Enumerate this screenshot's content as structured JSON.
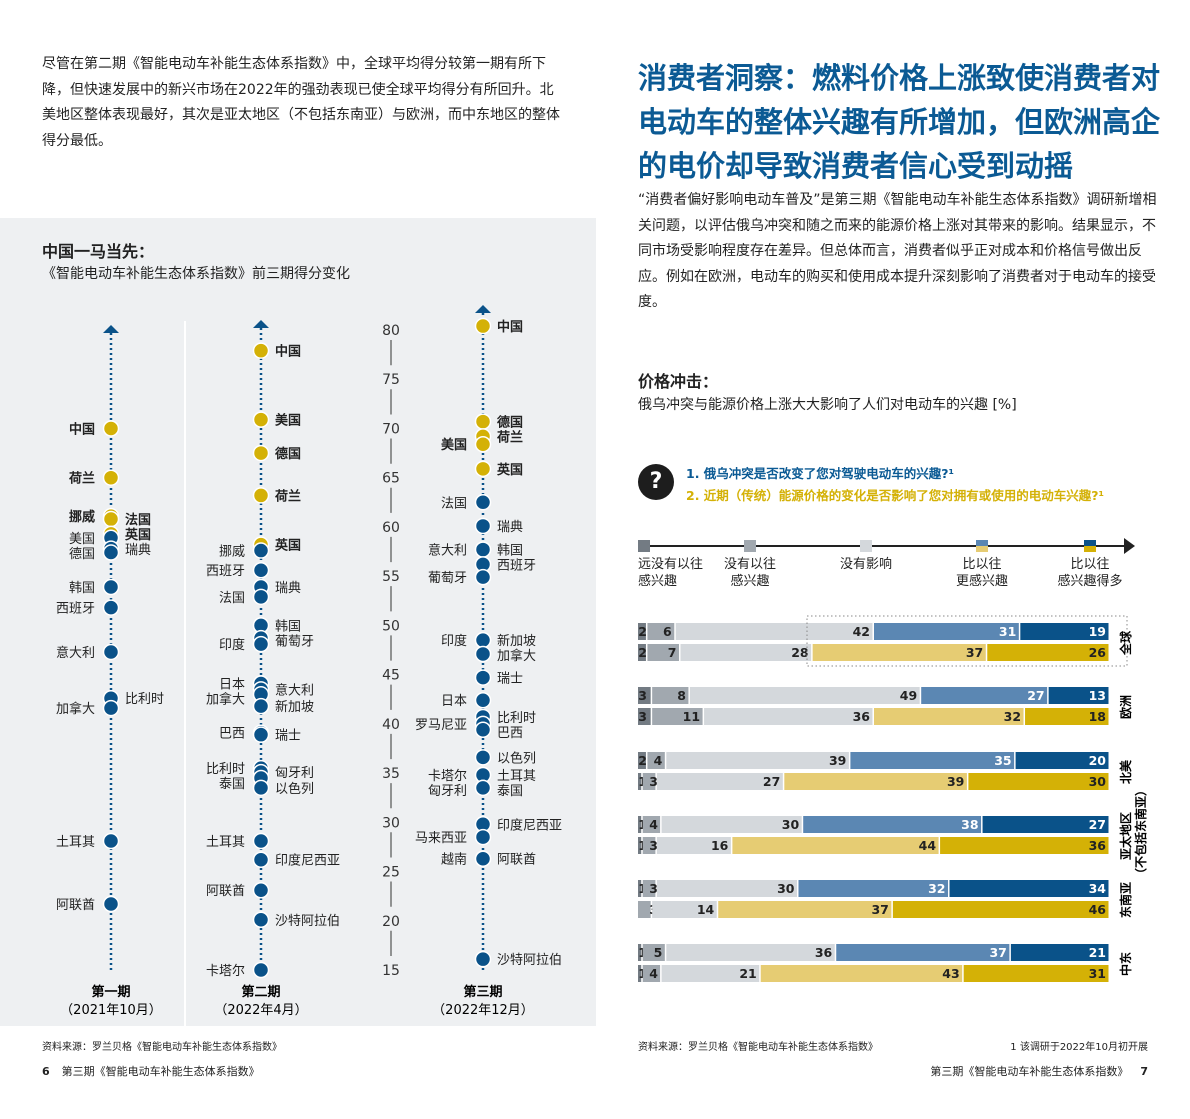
{
  "intro": "尽管在第二期《智能电动车补能生态体系指数》中，全球平均得分较第一期有所下降，但快速发展中的新兴市场在2022年的强劲表现已使全球平均得分有所回升。北美地区整体表现最好，其次是亚太地区（不包括东南亚）与欧洲，而中东地区的整体得分最低。",
  "left_chart": {
    "title": "中国一马当先：",
    "subtitle": "《智能电动车补能生态体系指数》前三期得分变化"
  },
  "chart_data": [
    {
      "type": "dot-strip",
      "axis_ticks": [
        80,
        75,
        70,
        65,
        60,
        55,
        50,
        45,
        40,
        35,
        30,
        25,
        20,
        15
      ],
      "ylim": [
        15,
        80
      ],
      "colors": {
        "leader": "#d4b106",
        "other": "#0a5289"
      },
      "periods": [
        {
          "name": "第一期",
          "date": "（2021年10月）",
          "points": [
            [
              "中国",
              70.0,
              "L",
              1
            ],
            [
              "荷兰",
              65.0,
              "L",
              1
            ],
            [
              "挪威",
              61.1,
              "L",
              1
            ],
            [
              "法国",
              60.8,
              "R",
              1
            ],
            [
              "英国",
              59.3,
              "R",
              1
            ],
            [
              "美国",
              58.9,
              "L",
              0
            ],
            [
              "瑞典",
              57.8,
              "R",
              0
            ],
            [
              "德国",
              57.4,
              "L",
              0
            ],
            [
              "韩国",
              53.9,
              "L",
              0
            ],
            [
              "西班牙",
              51.8,
              "L",
              0
            ],
            [
              "意大利",
              47.3,
              "L",
              0
            ],
            [
              "比利时",
              42.6,
              "R",
              0
            ],
            [
              "加拿大",
              41.6,
              "L",
              0
            ],
            [
              "土耳其",
              28.1,
              "L",
              0
            ],
            [
              "阿联酋",
              21.7,
              "L",
              0
            ]
          ]
        },
        {
          "name": "第二期",
          "date": "（2022年4月）",
          "points": [
            [
              "中国",
              77.9,
              "R",
              1
            ],
            [
              "美国",
              70.9,
              "R",
              1
            ],
            [
              "德国",
              67.5,
              "R",
              1
            ],
            [
              "荷兰",
              63.2,
              "R",
              1
            ],
            [
              "英国",
              58.2,
              "R",
              1
            ],
            [
              "挪威",
              57.6,
              "L",
              0
            ],
            [
              "西班牙",
              55.6,
              "L",
              0
            ],
            [
              "瑞典",
              53.9,
              "R",
              0
            ],
            [
              "法国",
              52.9,
              "L",
              0
            ],
            [
              "韩国",
              50.0,
              "R",
              0
            ],
            [
              "葡萄牙",
              48.7,
              "R",
              0
            ],
            [
              "印度",
              48.1,
              "L",
              0
            ],
            [
              "日本",
              44.1,
              "L",
              0
            ],
            [
              "意大利",
              43.5,
              "R",
              0
            ],
            [
              "加拿大",
              43.0,
              "L",
              0
            ],
            [
              "新加坡",
              41.8,
              "R",
              0
            ],
            [
              "巴西",
              39.1,
              "L",
              0
            ],
            [
              "瑞士",
              38.9,
              "R",
              0
            ],
            [
              "比利时",
              35.5,
              "L",
              0
            ],
            [
              "匈牙利",
              35.1,
              "R",
              0
            ],
            [
              "泰国",
              34.5,
              "L",
              0
            ],
            [
              "以色列",
              33.5,
              "R",
              0
            ],
            [
              "土耳其",
              28.1,
              "L",
              0
            ],
            [
              "印度尼西亚",
              26.2,
              "R",
              0
            ],
            [
              "阿联酋",
              23.1,
              "L",
              0
            ],
            [
              "沙特阿拉伯",
              20.1,
              "R",
              0
            ],
            [
              "卡塔尔",
              15.0,
              "L",
              0
            ]
          ]
        },
        {
          "name": "第三期",
          "date": "（2022年12月）",
          "points": [
            [
              "中国",
              80.4,
              "R",
              1
            ],
            [
              "德国",
              70.7,
              "R",
              1
            ],
            [
              "荷兰",
              69.2,
              "R",
              1
            ],
            [
              "美国",
              68.4,
              "L",
              1
            ],
            [
              "英国",
              65.9,
              "R",
              1
            ],
            [
              "法国",
              62.5,
              "L",
              0
            ],
            [
              "瑞典",
              60.1,
              "R",
              0
            ],
            [
              "意大利",
              57.7,
              "L",
              0
            ],
            [
              "韩国",
              57.7,
              "R",
              0
            ],
            [
              "西班牙",
              56.2,
              "R",
              0
            ],
            [
              "葡萄牙",
              54.9,
              "L",
              0
            ],
            [
              "印度",
              48.5,
              "L",
              0
            ],
            [
              "新加坡",
              48.5,
              "R",
              0
            ],
            [
              "加拿大",
              47.1,
              "R",
              0
            ],
            [
              "瑞士",
              44.7,
              "R",
              0
            ],
            [
              "日本",
              42.4,
              "L",
              0
            ],
            [
              "比利时",
              40.7,
              "R",
              0
            ],
            [
              "罗马尼亚",
              40.0,
              "L",
              0
            ],
            [
              "巴西",
              39.4,
              "R",
              0
            ],
            [
              "以色列",
              36.6,
              "R",
              0
            ],
            [
              "卡塔尔",
              34.8,
              "L",
              0
            ],
            [
              "土耳其",
              34.8,
              "R",
              0
            ],
            [
              "匈牙利",
              33.5,
              "L",
              0
            ],
            [
              "泰国",
              33.5,
              "R",
              0
            ],
            [
              "印度尼西亚",
              29.8,
              "R",
              0
            ],
            [
              "马来西亚",
              28.5,
              "L",
              0
            ],
            [
              "越南",
              26.3,
              "L",
              0
            ],
            [
              "阿联酋",
              26.3,
              "R",
              0
            ],
            [
              "沙特阿拉伯",
              16.1,
              "R",
              0
            ]
          ]
        }
      ]
    },
    {
      "type": "stacked-bar-horizontal",
      "unit": "%",
      "categories": [
        "远没有以往感兴趣",
        "没有以往感兴趣",
        "没有影响",
        "比以往更感兴趣",
        "比以往感兴趣得多"
      ],
      "colors": {
        "q1": [
          "#737b83",
          "#a1a8af",
          "#d4d8dc",
          "#5b87b3",
          "#0a5289"
        ],
        "q2": [
          "#737b83",
          "#a1a8af",
          "#d4d8dc",
          "#e6cc73",
          "#d4b106"
        ]
      },
      "regions": [
        {
          "name": "全球",
          "q1": [
            2,
            6,
            42,
            31,
            19
          ],
          "q2": [
            2,
            7,
            28,
            37,
            26
          ]
        },
        {
          "name": "欧洲",
          "q1": [
            3,
            8,
            49,
            27,
            13
          ],
          "q2": [
            3,
            11,
            36,
            32,
            18
          ]
        },
        {
          "name": "北美",
          "q1": [
            2,
            4,
            39,
            35,
            20
          ],
          "q2": [
            1,
            3,
            27,
            39,
            30
          ]
        },
        {
          "name": "亚太地区（不包括东南亚）",
          "q1": [
            1,
            4,
            30,
            38,
            27
          ],
          "q2": [
            1,
            3,
            16,
            44,
            36
          ]
        },
        {
          "name": "东南亚",
          "q1": [
            1,
            3,
            30,
            32,
            34
          ],
          "q2": [
            0,
            3,
            14,
            37,
            46
          ]
        },
        {
          "name": "中东",
          "q1": [
            1,
            5,
            36,
            37,
            21
          ],
          "q2": [
            1,
            4,
            21,
            43,
            31
          ]
        }
      ]
    }
  ],
  "source_left": "资料来源：罗兰贝格《智能电动车补能生态体系指数》",
  "page_left": {
    "num": "6",
    "title": "第三期《智能电动车补能生态体系指数》"
  },
  "right_title": "消费者洞察：燃料价格上涨致使消费者对电动车的整体兴趣有所增加，但欧洲高企的电价却导致消费者信心受到动摇",
  "right_para": "“消费者偏好影响电动车普及”是第三期《智能电动车补能生态体系指数》调研新增相关问题，以评估俄乌冲突和随之而来的能源价格上涨对其带来的影响。结果显示，不同市场受影响程度存在差异。但总体而言，消费者似乎正对成本和价格信号做出反应。例如在欧洲，电动车的购买和使用成本提升深刻影响了消费者对于电动车的接受度。",
  "price": {
    "title": "价格冲击：",
    "subtitle": "俄乌冲突与能源价格上涨大大影响了人们对电动车的兴趣 [%]",
    "icon": "question-icon",
    "q1": "1.  俄乌冲突是否改变了您对驾驶电动车的兴趣?¹",
    "q2": "2.  近期（传统）能源价格的变化是否影响了您对拥有或使用的电动车兴趣?¹"
  },
  "source_right": "资料来源：罗兰贝格《智能电动车补能生态体系指数》",
  "note": "1 该调研于2022年10月初开展",
  "page_right": {
    "num": "7",
    "title": "第三期《智能电动车补能生态体系指数》"
  }
}
